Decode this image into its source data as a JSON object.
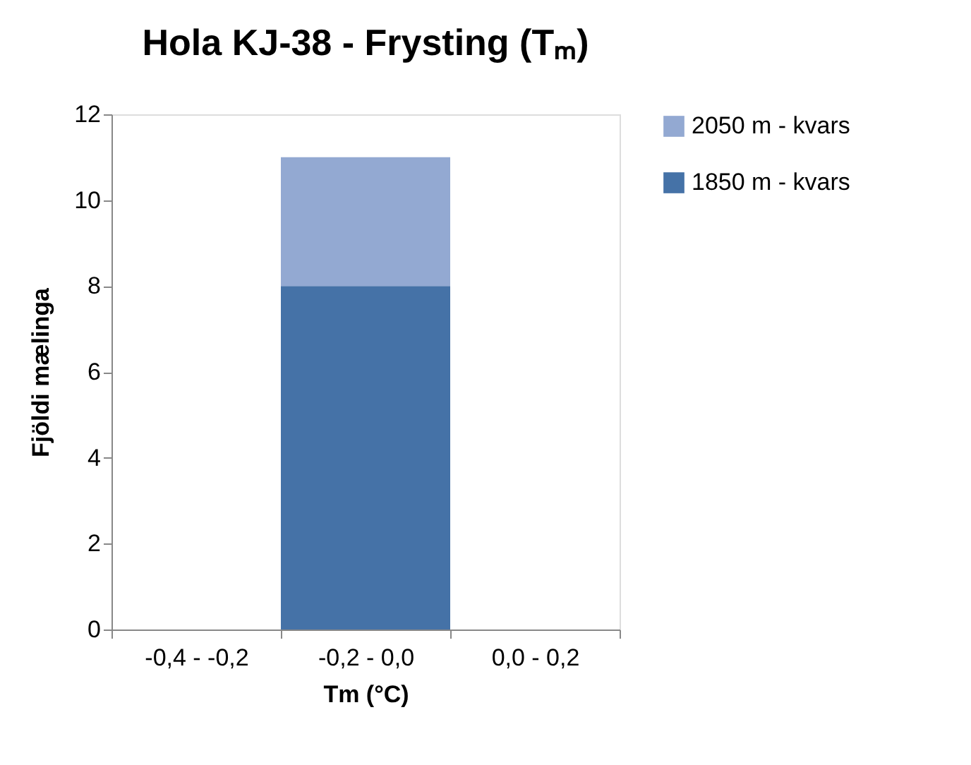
{
  "chart_data": {
    "type": "bar",
    "title": "Hola KJ-38 - Frysting (Tₘ)",
    "xlabel": "Tm (°C)",
    "ylabel": "Fjöldi mælinga",
    "categories": [
      "-0,4 - -0,2",
      "-0,2 - 0,0",
      "0,0 - 0,2"
    ],
    "series": [
      {
        "name": "1850 m - kvars",
        "color": "#4572a7",
        "values": [
          0,
          8,
          0
        ]
      },
      {
        "name": "2050 m - kvars",
        "color": "#93a9d2",
        "values": [
          0,
          3,
          0
        ]
      }
    ],
    "stacked": true,
    "ylim": [
      0,
      12
    ],
    "yticks": [
      0,
      2,
      4,
      6,
      8,
      10,
      12
    ],
    "grid": false,
    "legend": "right"
  }
}
